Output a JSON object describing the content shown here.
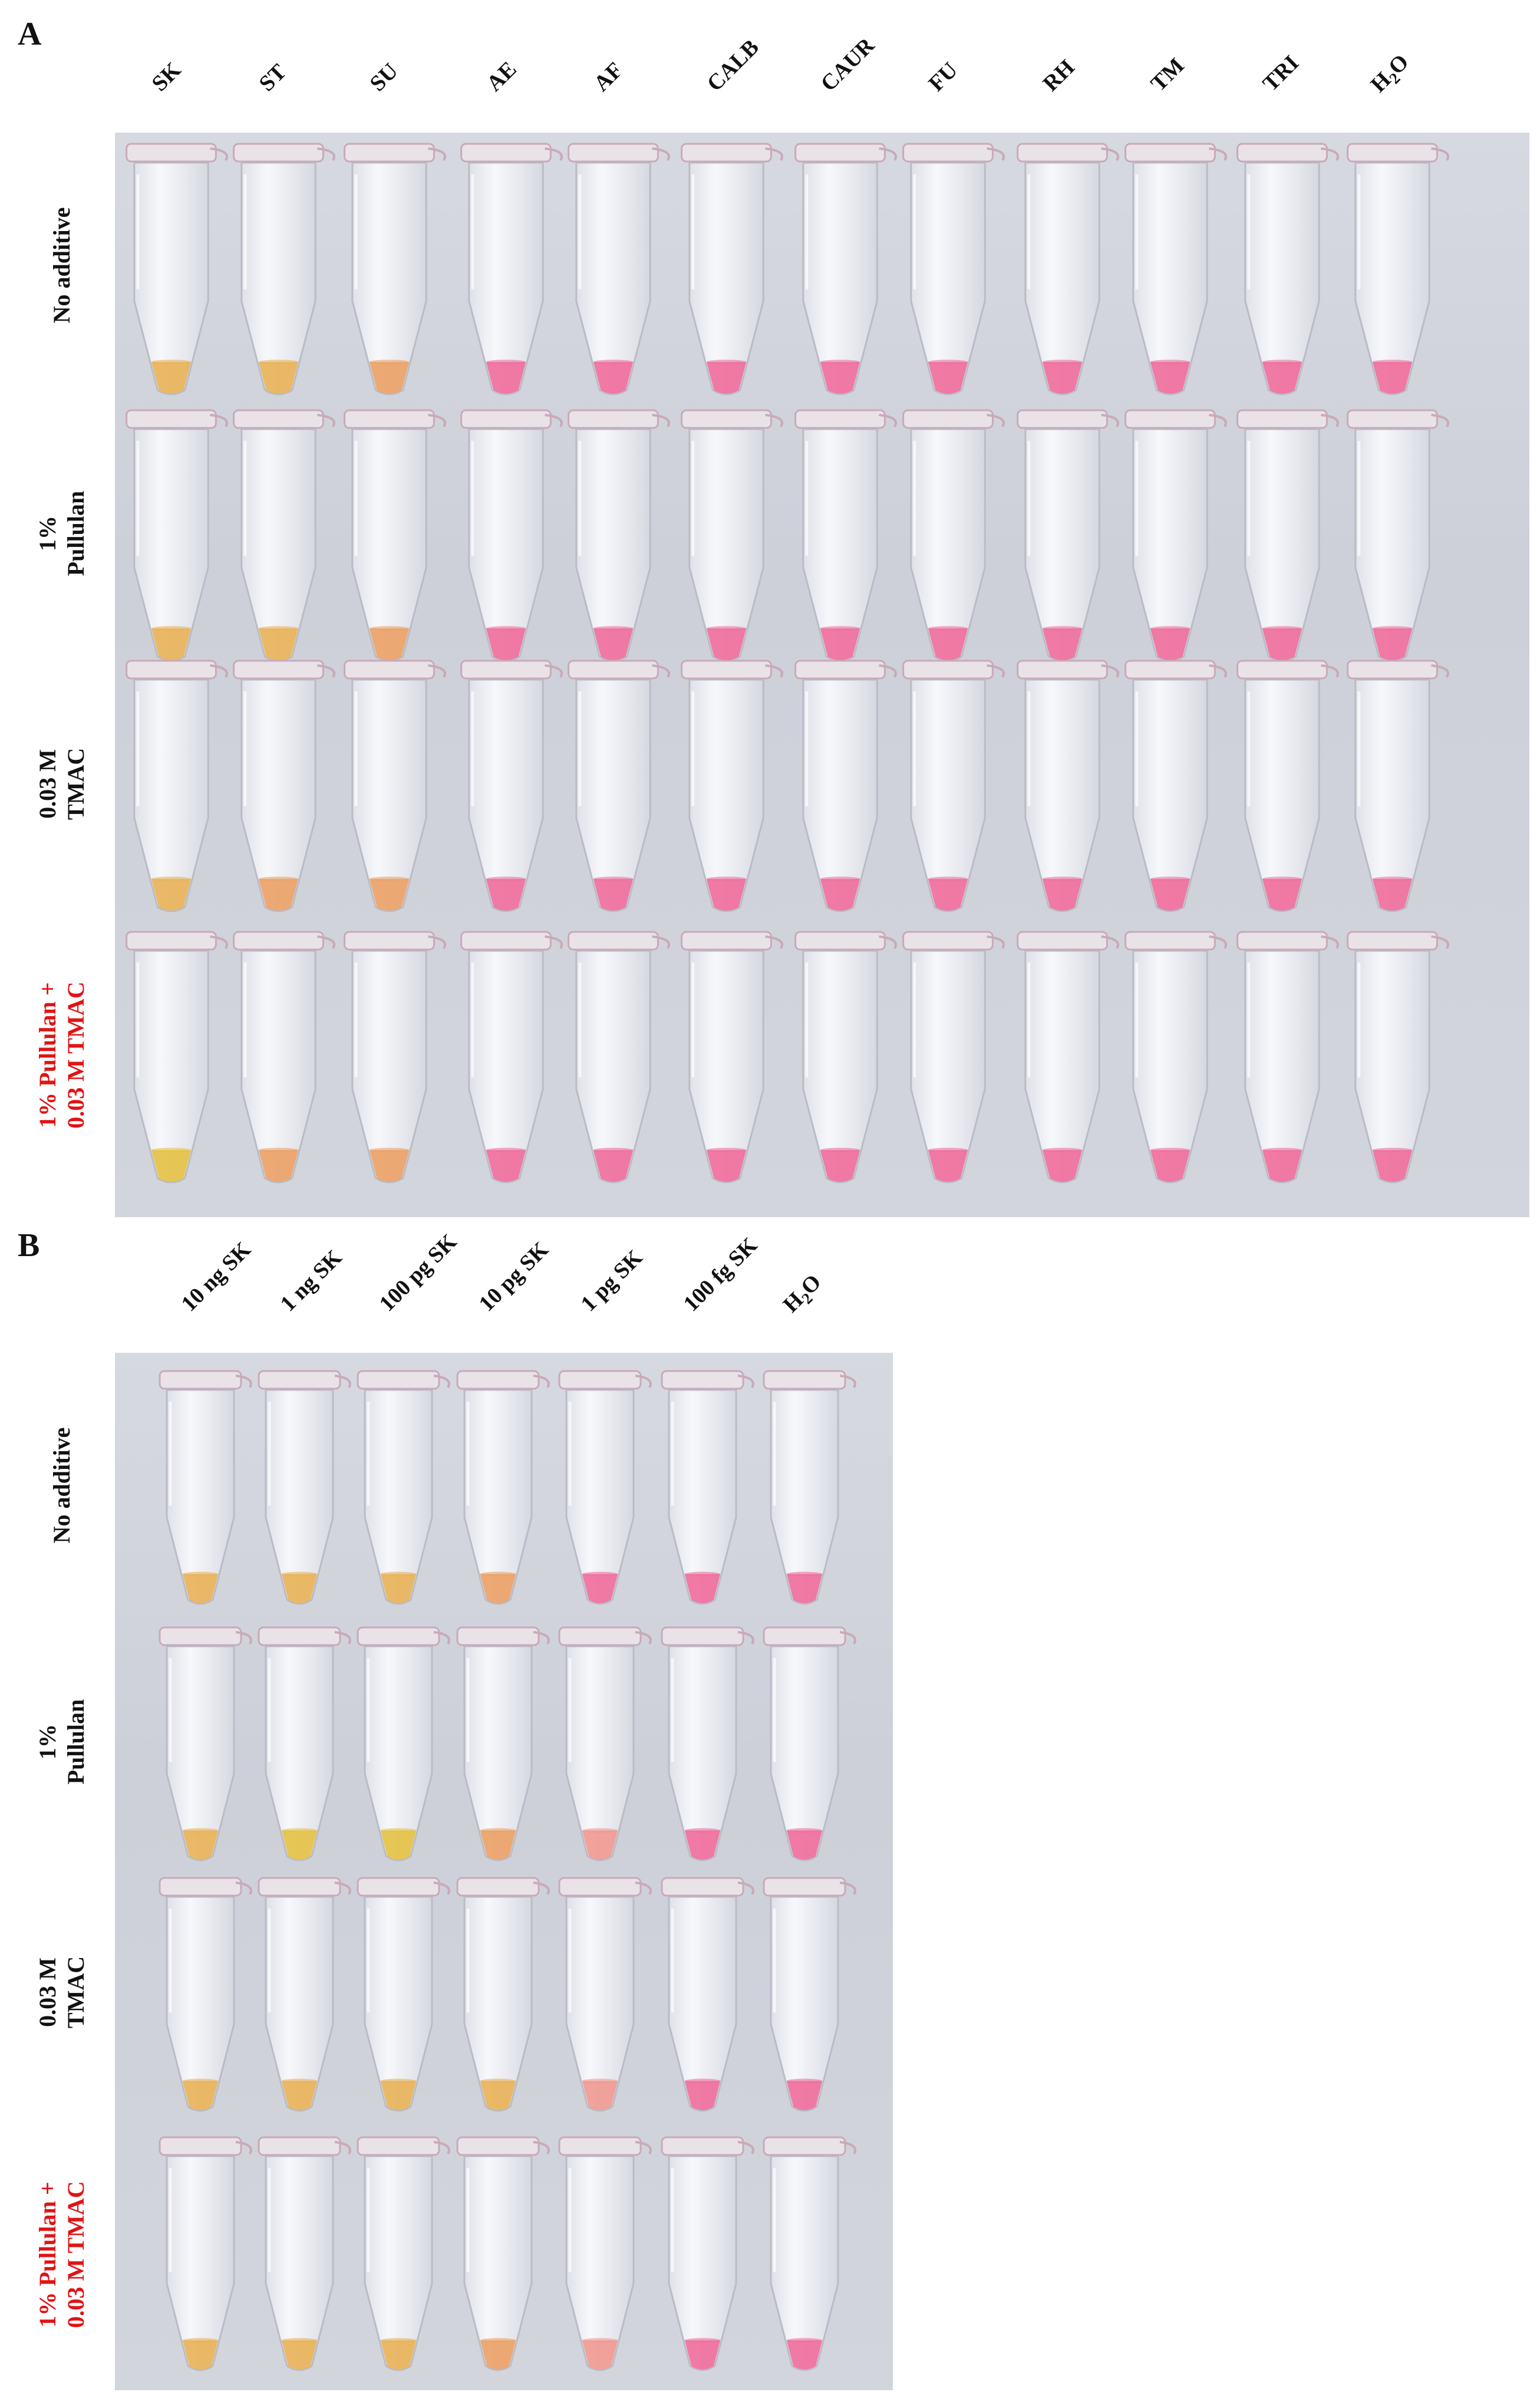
{
  "panel_a": {
    "letter": "A",
    "columns": [
      "SK",
      "ST",
      "SU",
      "AE",
      "AF",
      "CALB",
      "CAUR",
      "FU",
      "RH",
      "TM",
      "TRI",
      "H2O"
    ],
    "rows": [
      {
        "line1": "No additive",
        "line2": "",
        "highlight": false
      },
      {
        "line1": "1%",
        "line2": "Pullulan",
        "highlight": false
      },
      {
        "line1": "0.03 M",
        "line2": "TMAC",
        "highlight": false
      },
      {
        "line1": "1% Pullulan +",
        "line2": "0.03 M TMAC",
        "highlight": true
      }
    ],
    "tube_colors": [
      [
        "amber",
        "amber",
        "orange",
        "pink",
        "pink",
        "pink",
        "pink",
        "pink",
        "pink",
        "pink",
        "pink",
        "pink"
      ],
      [
        "amber",
        "amber",
        "orange",
        "pink",
        "pink",
        "pink",
        "pink",
        "pink",
        "pink",
        "pink",
        "pink",
        "pink"
      ],
      [
        "amber",
        "orange",
        "orange",
        "pink",
        "pink",
        "pink",
        "pink",
        "pink",
        "pink",
        "pink",
        "pink",
        "pink"
      ],
      [
        "yellow",
        "orange",
        "orange",
        "pink",
        "pink",
        "pink",
        "pink",
        "pink",
        "pink",
        "pink",
        "pink",
        "pink"
      ]
    ]
  },
  "panel_b": {
    "letter": "B",
    "columns": [
      "10 ng SK",
      "1 ng SK",
      "100 pg SK",
      "10 pg SK",
      "1 pg SK",
      "100 fg SK",
      "H2O"
    ],
    "rows": [
      {
        "line1": "No additive",
        "line2": "",
        "highlight": false
      },
      {
        "line1": "1%",
        "line2": "Pullulan",
        "highlight": false
      },
      {
        "line1": "0.03 M",
        "line2": "TMAC",
        "highlight": false
      },
      {
        "line1": "1% Pullulan +",
        "line2": "0.03 M TMAC",
        "highlight": true
      }
    ],
    "tube_colors": [
      [
        "amber",
        "amber",
        "amber",
        "orange",
        "pink",
        "pink",
        "pink"
      ],
      [
        "amber",
        "yellow",
        "yellow",
        "orange",
        "salmon",
        "pink",
        "pink"
      ],
      [
        "amber",
        "amber",
        "amber",
        "amber",
        "salmon",
        "pink",
        "pink"
      ],
      [
        "amber",
        "amber",
        "amber",
        "orange",
        "salmon",
        "pink",
        "pink"
      ]
    ]
  },
  "palette": {
    "amber": "#e8b35a",
    "yellow": "#e4c247",
    "orange": "#eba268",
    "salmon": "#ef9a93",
    "pink": "#ef6f9c",
    "tube_body": "#ecedf2",
    "tube_edge": "#b9bcc6",
    "cap": "#e9e3e7",
    "cap_edge": "#c9aab8",
    "highlight_text": "#e01414"
  }
}
